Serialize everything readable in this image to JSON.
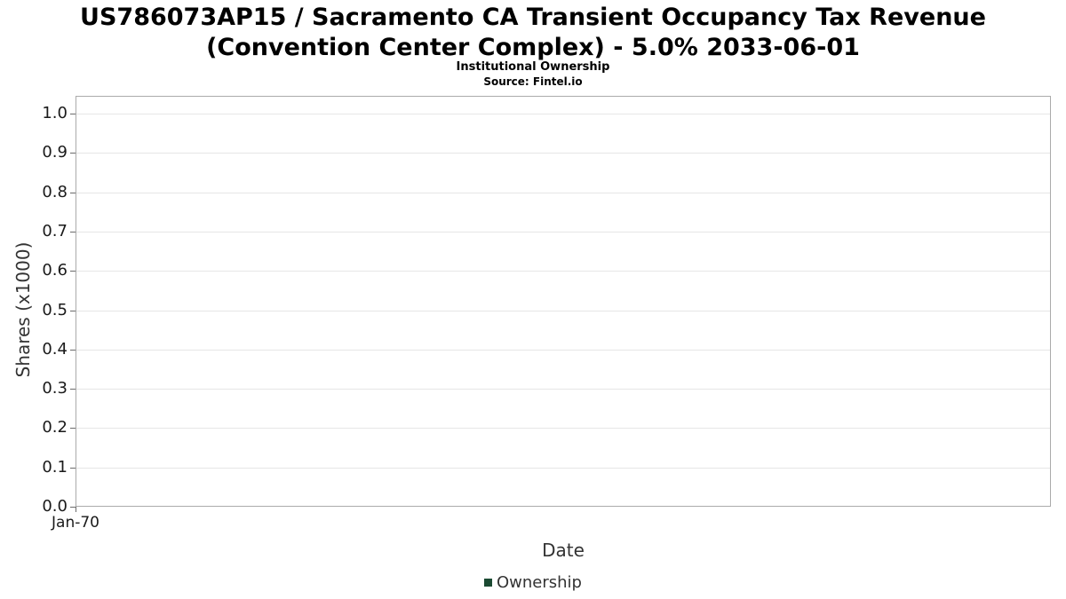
{
  "chart_data": {
    "type": "line",
    "title": "US786073AP15 / Sacramento CA Transient Occupancy Tax Revenue (Convention Center Complex) - 5.0% 2033-06-01",
    "subtitle": "Institutional Ownership",
    "source": "Source: Fintel.io",
    "xlabel": "Date",
    "ylabel": "Shares (x1000)",
    "ylim": [
      0.0,
      1.0
    ],
    "ytick_step": 0.1,
    "yticks": [
      "1.0",
      "0.9",
      "0.8",
      "0.7",
      "0.6",
      "0.5",
      "0.4",
      "0.3",
      "0.2",
      "0.1",
      "0.0"
    ],
    "xticks": [
      "Jan-70"
    ],
    "grid": true,
    "legend_position": "bottom",
    "series": [
      {
        "name": "Ownership",
        "color": "#1b4a32",
        "x": [],
        "values": []
      }
    ]
  }
}
